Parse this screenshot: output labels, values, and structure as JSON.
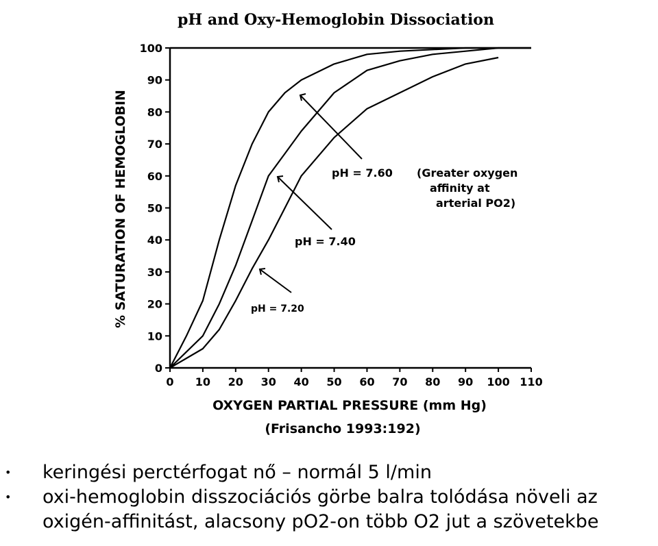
{
  "chart_data": {
    "type": "line",
    "title": "pH and Oxy-Hemoglobin Dissociation",
    "xlabel": "OXYGEN PARTIAL PRESSURE (mm Hg)",
    "ylabel": "% SATURATION OF HEMOGLOBIN",
    "source": "(Frisancho 1993:192)",
    "xlim": [
      0,
      110
    ],
    "ylim": [
      0,
      100
    ],
    "x_ticks": [
      "0",
      "10",
      "20",
      "30",
      "40",
      "50",
      "60",
      "70",
      "80",
      "90",
      "100",
      "110"
    ],
    "y_ticks": [
      "0",
      "10",
      "20",
      "30",
      "40",
      "50",
      "60",
      "70",
      "80",
      "90",
      "100"
    ],
    "series": [
      {
        "name": "pH = 7.60",
        "x": [
          0,
          5,
          10,
          15,
          20,
          25,
          30,
          35,
          40,
          50,
          60,
          70,
          80,
          90,
          100,
          110
        ],
        "y": [
          0,
          10,
          21,
          40,
          57,
          70,
          80,
          86,
          90,
          95,
          98,
          99,
          99.5,
          100,
          100,
          100
        ]
      },
      {
        "name": "pH = 7.40",
        "x": [
          0,
          5,
          10,
          15,
          20,
          25,
          30,
          35,
          40,
          50,
          60,
          70,
          80,
          90,
          100,
          110
        ],
        "y": [
          0,
          5,
          10,
          20,
          32,
          46,
          60,
          67,
          74,
          86,
          93,
          96,
          98,
          99,
          100,
          100
        ]
      },
      {
        "name": "pH = 7.20",
        "x": [
          0,
          5,
          10,
          15,
          20,
          25,
          30,
          35,
          40,
          50,
          60,
          70,
          80,
          90,
          100
        ],
        "y": [
          0,
          3,
          6,
          12,
          21,
          31,
          40,
          50,
          60,
          72,
          81,
          86,
          91,
          95,
          97
        ]
      }
    ],
    "annotations": [
      {
        "text": "pH = 7.60",
        "detail": [
          "(Greater oxygen",
          "affinity at",
          "arterial PO2)"
        ]
      },
      {
        "text": "pH = 7.40"
      },
      {
        "text": "pH = 7.20"
      }
    ]
  },
  "bullets": [
    {
      "lines": [
        "keringési perctérfogat nő – normál 5 l/min"
      ]
    },
    {
      "lines": [
        "oxi-hemoglobin disszociációs görbe balra tolódása növeli az",
        "oxigén-affinitást, alacsony pO2-on több O2 jut a szövetekbe"
      ]
    }
  ]
}
